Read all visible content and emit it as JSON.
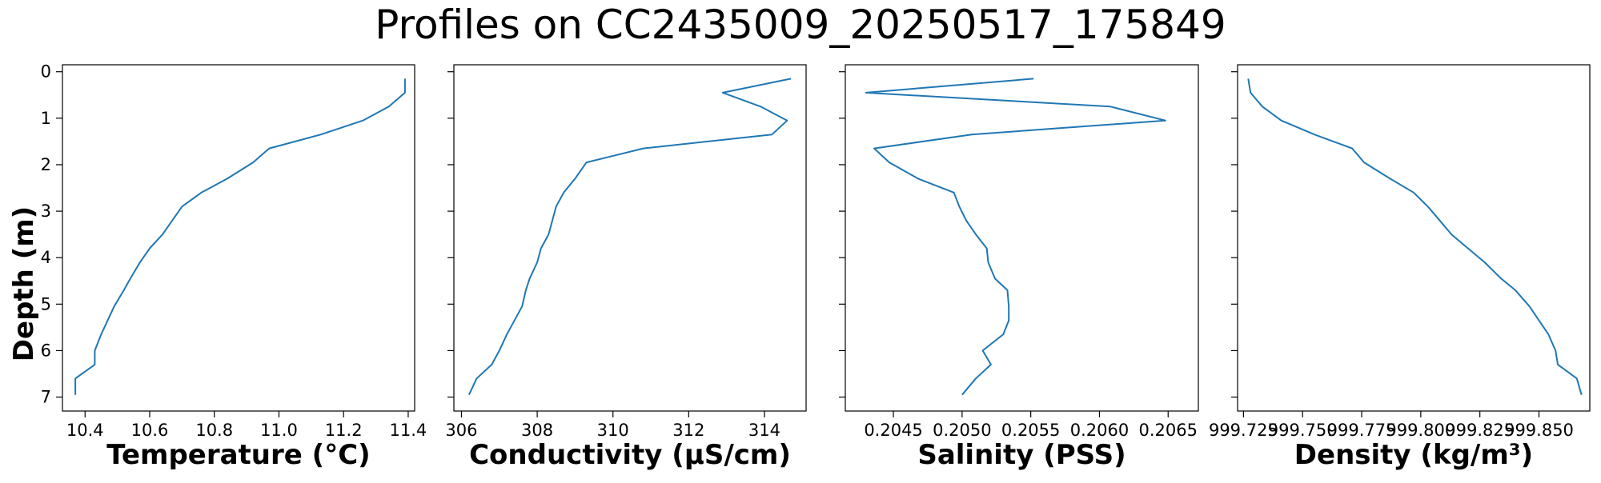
{
  "chart_data": {
    "title": "Profiles on CC2435009_20250517_175849",
    "shared_y": {
      "label": "Depth (m)",
      "inverted": true,
      "ylim": [
        7.3,
        -0.15
      ],
      "ticks": [
        0,
        1,
        2,
        3,
        4,
        5,
        6,
        7
      ]
    },
    "depth": [
      0.15,
      0.45,
      0.75,
      1.05,
      1.35,
      1.65,
      1.95,
      2.3,
      2.6,
      2.9,
      3.2,
      3.5,
      3.8,
      4.1,
      4.45,
      4.7,
      5.05,
      5.35,
      5.65,
      6.0,
      6.3,
      6.6,
      6.95
    ],
    "panels": [
      {
        "type": "line",
        "xlabel": "Temperature (°C)",
        "xlim": [
          10.33,
          11.42
        ],
        "xticks": [
          10.4,
          10.6,
          10.8,
          11.0,
          11.2,
          11.4
        ],
        "xticklabels": [
          "10.4",
          "10.6",
          "10.8",
          "11.0",
          "11.2",
          "11.4"
        ],
        "values": [
          11.39,
          11.39,
          11.34,
          11.26,
          11.13,
          10.97,
          10.92,
          10.84,
          10.76,
          10.7,
          10.67,
          10.64,
          10.6,
          10.57,
          10.54,
          10.52,
          10.49,
          10.47,
          10.45,
          10.43,
          10.43,
          10.37,
          10.37
        ]
      },
      {
        "type": "line",
        "xlabel": "Conductivity (μS/cm)",
        "xlim": [
          305.8,
          315.1
        ],
        "xticks": [
          306,
          308,
          310,
          312,
          314
        ],
        "xticklabels": [
          "306",
          "308",
          "310",
          "312",
          "314"
        ],
        "values": [
          314.7,
          312.9,
          313.9,
          314.6,
          314.2,
          310.8,
          309.3,
          309.0,
          308.7,
          308.5,
          308.4,
          308.3,
          308.1,
          308.0,
          307.8,
          307.7,
          307.6,
          307.4,
          307.2,
          307.0,
          306.8,
          306.4,
          306.2
        ]
      },
      {
        "type": "line",
        "xlabel": "Salinity (PSS)",
        "xlim": [
          0.20415,
          0.20672
        ],
        "xticks": [
          0.2045,
          0.205,
          0.2055,
          0.206,
          0.2065
        ],
        "xticklabels": [
          "0.2045",
          "0.2050",
          "0.2055",
          "0.2060",
          "0.2065"
        ],
        "values": [
          0.20552,
          0.2043,
          0.20608,
          0.20648,
          0.20507,
          0.20436,
          0.20447,
          0.20468,
          0.20494,
          0.20498,
          0.20503,
          0.2051,
          0.20518,
          0.20519,
          0.20524,
          0.20533,
          0.20534,
          0.20534,
          0.2053,
          0.20515,
          0.20521,
          0.2051,
          0.205
        ]
      },
      {
        "type": "line",
        "xlabel": "Density (kg/m³)",
        "xlim": [
          999.7225,
          999.8715
        ],
        "xticks": [
          999.725,
          999.75,
          999.775,
          999.8,
          999.825,
          999.85
        ],
        "xticklabels": [
          "999.725",
          "999.750",
          "999.775",
          "999.800",
          "999.825",
          "999.850"
        ],
        "values": [
          999.727,
          999.728,
          999.733,
          999.741,
          999.755,
          999.771,
          999.776,
          999.787,
          999.797,
          999.803,
          999.808,
          999.813,
          999.82,
          999.827,
          999.834,
          999.84,
          999.846,
          999.85,
          999.854,
          999.857,
          999.858,
          999.866,
          999.868
        ]
      }
    ]
  }
}
